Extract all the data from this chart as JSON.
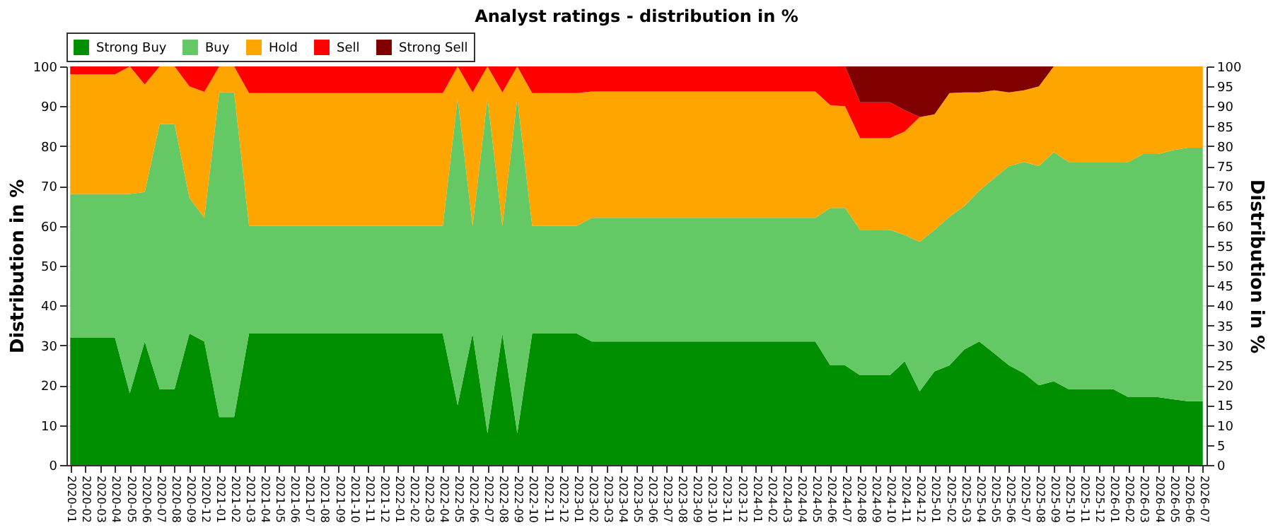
{
  "chart_data": {
    "type": "area",
    "stacked": true,
    "title": "Analyst ratings - distribution in %",
    "categories": [
      "2020-01",
      "2020-02",
      "2020-03",
      "2020-04",
      "2020-05",
      "2020-06",
      "2020-07",
      "2020-08",
      "2020-09",
      "2020-12",
      "2021-01",
      "2021-02",
      "2021-03",
      "2021-04",
      "2021-05",
      "2021-06",
      "2021-07",
      "2021-08",
      "2021-09",
      "2021-10",
      "2021-11",
      "2021-12",
      "2022-01",
      "2022-02",
      "2022-03",
      "2022-04",
      "2022-05",
      "2022-06",
      "2022-07",
      "2022-08",
      "2022-09",
      "2022-10",
      "2022-11",
      "2022-12",
      "2023-01",
      "2023-02",
      "2023-03",
      "2023-04",
      "2023-05",
      "2023-06",
      "2023-07",
      "2023-08",
      "2023-09",
      "2023-10",
      "2023-11",
      "2023-12",
      "2024-01",
      "2024-02",
      "2024-03",
      "2024-04",
      "2024-05",
      "2024-06",
      "2024-07",
      "2024-08",
      "2024-09",
      "2024-10",
      "2024-11",
      "2024-12",
      "2025-01",
      "2025-02",
      "2025-03",
      "2025-04",
      "2025-05",
      "2025-06",
      "2025-07",
      "2025-08",
      "2025-09",
      "2025-10",
      "2025-11",
      "2025-12",
      "2026-01",
      "2026-02",
      "2026-03",
      "2026-04",
      "2026-05",
      "2026-06",
      "2026-07"
    ],
    "series": [
      {
        "name": "Strong Buy",
        "color": "#008f00",
        "values": [
          32,
          32,
          32,
          32,
          18,
          31,
          19,
          19,
          33,
          31,
          12,
          12,
          33,
          33,
          33,
          33,
          33,
          33,
          33,
          33,
          33,
          33,
          33,
          33,
          33,
          33,
          15,
          33,
          8,
          33,
          8,
          33,
          33,
          33,
          33,
          31,
          31,
          31,
          31,
          31,
          31,
          31,
          31,
          31,
          31,
          31,
          31,
          31,
          31,
          31,
          31,
          25,
          25,
          22.5,
          22.5,
          22.5,
          26,
          18.5,
          23.5,
          25,
          29,
          31,
          28,
          25,
          23,
          20,
          21,
          19,
          19,
          19,
          19,
          17,
          17,
          17,
          16.5,
          16,
          16
        ]
      },
      {
        "name": "Buy",
        "color": "#64c864",
        "values": [
          36,
          36,
          36,
          36,
          50,
          37.5,
          66.5,
          66.5,
          34,
          31,
          81.5,
          81.5,
          27,
          27,
          27,
          27,
          27,
          27,
          27,
          27,
          27,
          27,
          27,
          27,
          27,
          27,
          77,
          27,
          84,
          27,
          84,
          27,
          27,
          27,
          27,
          31,
          31,
          31,
          31,
          31,
          31,
          31,
          31,
          31,
          31,
          31,
          31,
          31,
          31,
          31,
          31,
          39.5,
          39.5,
          36.5,
          36.5,
          36.5,
          31.7,
          37.5,
          35.5,
          37.3,
          36,
          37.8,
          44,
          50,
          53,
          55,
          57.5,
          57,
          57,
          57,
          57,
          59,
          61,
          61,
          62.5,
          63.6,
          63.6
        ]
      },
      {
        "name": "Hold",
        "color": "#ffa500",
        "values": [
          30,
          30,
          30,
          30,
          32,
          27,
          14.5,
          14.5,
          28,
          31.6,
          6.5,
          6.5,
          33.3,
          33.3,
          33.3,
          33.3,
          33.3,
          33.3,
          33.3,
          33.3,
          33.3,
          33.3,
          33.3,
          33.3,
          33.3,
          33.3,
          8,
          33.5,
          8,
          33.5,
          8,
          33.3,
          33.3,
          33.3,
          33.3,
          31.7,
          31.7,
          31.7,
          31.7,
          31.7,
          31.7,
          31.7,
          31.7,
          31.7,
          31.7,
          31.7,
          31.7,
          31.7,
          31.7,
          31.7,
          31.7,
          25.8,
          25.5,
          23,
          23,
          23,
          26,
          31.3,
          29,
          31,
          28.5,
          24.7,
          22,
          18.5,
          18,
          20,
          21.5,
          24,
          24,
          24,
          24,
          24,
          22,
          22,
          21,
          20.4,
          20.4
        ]
      },
      {
        "name": "Sell",
        "color": "#ff0000",
        "values": [
          2,
          2,
          2,
          2,
          0,
          4.5,
          0,
          0,
          5,
          6.4,
          0,
          0,
          6.7,
          6.7,
          6.7,
          6.7,
          6.7,
          6.7,
          6.7,
          6.7,
          6.7,
          6.7,
          6.7,
          6.7,
          6.7,
          6.7,
          0,
          6.5,
          0,
          6.5,
          0,
          6.7,
          6.7,
          6.7,
          6.7,
          6.3,
          6.3,
          6.3,
          6.3,
          6.3,
          6.3,
          6.3,
          6.3,
          6.3,
          6.3,
          6.3,
          6.3,
          6.3,
          6.3,
          6.3,
          6.3,
          9.7,
          10,
          9,
          9,
          9,
          5.3,
          0,
          0,
          0,
          0,
          0,
          0,
          0,
          0,
          0,
          0,
          0,
          0,
          0,
          0,
          0,
          0,
          0,
          0,
          0,
          0
        ]
      },
      {
        "name": "Strong Sell",
        "color": "#800000",
        "values": [
          0,
          0,
          0,
          0,
          0,
          0,
          0,
          0,
          0,
          0,
          0,
          0,
          0,
          0,
          0,
          0,
          0,
          0,
          0,
          0,
          0,
          0,
          0,
          0,
          0,
          0,
          0,
          0,
          0,
          0,
          0,
          0,
          0,
          0,
          0,
          0,
          0,
          0,
          0,
          0,
          0,
          0,
          0,
          0,
          0,
          0,
          0,
          0,
          0,
          0,
          0,
          0,
          0,
          9,
          9,
          9,
          11,
          12.7,
          12,
          6.7,
          6.5,
          6.5,
          6,
          6.5,
          6,
          5,
          0,
          0,
          0,
          0,
          0,
          0,
          0,
          0,
          0,
          0,
          0
        ]
      }
    ],
    "ylabel": "Distribution in %",
    "ylim": [
      0,
      100
    ],
    "yticks": [
      0,
      10,
      20,
      30,
      40,
      50,
      60,
      70,
      80,
      90,
      100
    ],
    "y2label": "Distribution in %",
    "y2lim": [
      0,
      100
    ],
    "y2ticks": [
      0,
      5,
      10,
      15,
      20,
      25,
      30,
      35,
      40,
      45,
      50,
      55,
      60,
      65,
      70,
      75,
      80,
      85,
      90,
      95,
      100
    ],
    "grid": "y",
    "legend": "top"
  }
}
